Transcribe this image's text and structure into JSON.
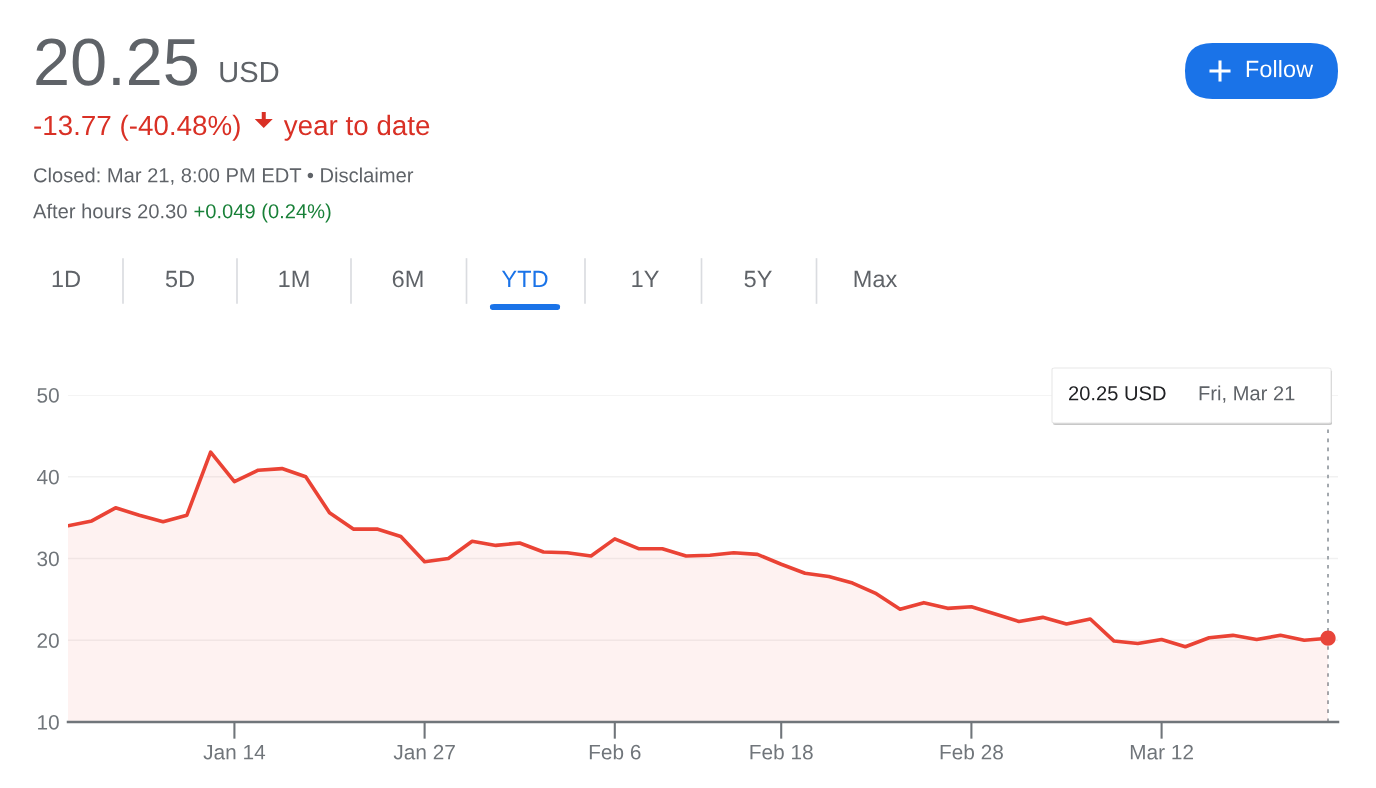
{
  "chart_data": {
    "type": "area",
    "title": "20.25",
    "subtitle": "USD",
    "annotations": [
      "-13.77 (-40.48%)",
      "year to date",
      "Closed: Mar 21, 8:00 PM EDT • Disclaimer",
      "After hours 20.30",
      "+0.049 (0.24%)",
      "1D",
      "5D",
      "1M",
      "6M",
      "YTD",
      "1Y",
      "5Y",
      "Max",
      "Follow",
      "20.25 USD",
      "Fri, Mar 21"
    ],
    "categories": [
      null,
      null,
      null,
      null,
      null,
      null,
      null,
      "Jan 14",
      null,
      null,
      null,
      null,
      null,
      null,
      null,
      "Jan 27",
      null,
      null,
      null,
      null,
      null,
      null,
      null,
      "Feb 6",
      null,
      null,
      null,
      null,
      null,
      null,
      "Feb 18",
      null,
      null,
      null,
      null,
      null,
      null,
      null,
      "Feb 28",
      null,
      null,
      null,
      null,
      null,
      null,
      null,
      "Mar 12",
      null,
      null,
      null,
      null,
      null,
      null,
      null
    ],
    "series": [
      {
        "color": "#ea4335",
        "values": [
          34.0,
          34.6,
          36.2,
          35.3,
          34.5,
          35.3,
          43.0,
          39.4,
          40.8,
          41.0,
          40.0,
          35.6,
          33.6,
          33.6,
          32.7,
          29.6,
          30.0,
          32.1,
          31.6,
          31.9,
          30.8,
          30.7,
          30.3,
          32.4,
          31.2,
          31.2,
          30.3,
          30.4,
          30.7,
          30.5,
          29.3,
          28.2,
          27.8,
          27.0,
          25.7,
          23.8,
          24.6,
          23.9,
          24.1,
          23.2,
          22.3,
          22.8,
          22.0,
          22.6,
          19.9,
          19.6,
          20.1,
          19.2,
          20.3,
          20.6,
          20.1,
          20.6,
          20.0,
          20.25
        ]
      },
      {
        "type": "scatter",
        "color": "#e8453a",
        "values": [
          null,
          null,
          null,
          null,
          null,
          null,
          null,
          null,
          null,
          null,
          null,
          null,
          null,
          null,
          null,
          null,
          null,
          null,
          null,
          null,
          null,
          null,
          null,
          null,
          null,
          null,
          null,
          null,
          null,
          null,
          null,
          null,
          null,
          null,
          null,
          null,
          null,
          null,
          null,
          null,
          null,
          null,
          null,
          null,
          null,
          null,
          null,
          null,
          null,
          null,
          null,
          null,
          null,
          20.25
        ]
      }
    ],
    "ylim": [
      10,
      50
    ],
    "yticks": [
      10,
      20,
      30,
      40,
      50
    ],
    "grid": "y",
    "legend": false
  }
}
